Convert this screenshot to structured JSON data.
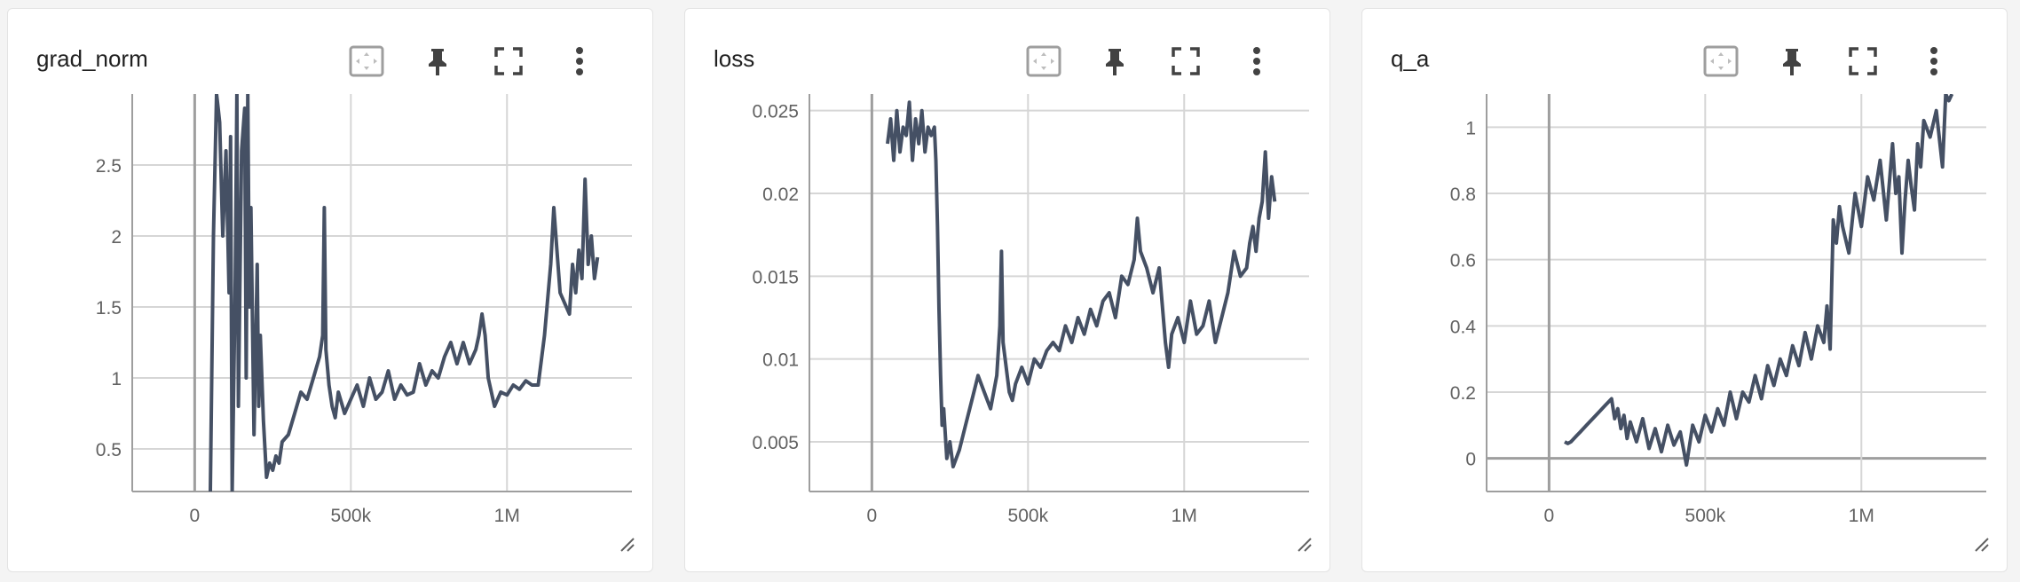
{
  "panels": [
    {
      "title": "grad_norm"
    },
    {
      "title": "loss"
    },
    {
      "title": "q_a"
    }
  ],
  "colors": {
    "series": "#455064",
    "grid": "#d6d6d6",
    "axis": "#9e9e9e",
    "text": "#616161"
  },
  "icons": [
    "fit-domain-icon",
    "pin-icon",
    "fullscreen-icon",
    "more-vert-icon",
    "resize-handle-icon"
  ],
  "chart_data": [
    {
      "type": "line",
      "title": "grad_norm",
      "xlim": [
        -200000,
        1400000
      ],
      "ylim": [
        0.2,
        3.0
      ],
      "xticks": [
        0,
        500000,
        1000000
      ],
      "xtick_labels": [
        "0",
        "500k",
        "1M"
      ],
      "yticks": [
        0.5,
        1,
        1.5,
        2,
        2.5
      ],
      "ytick_labels": [
        "0.5",
        "1",
        "1.5",
        "2",
        "2.5"
      ],
      "grid": true,
      "series": [
        {
          "x": [
            50000,
            60000,
            70000,
            75000,
            80000,
            90000,
            100000,
            110000,
            115000,
            120000,
            130000,
            135000,
            140000,
            150000,
            160000,
            165000,
            170000,
            175000,
            180000,
            190000,
            200000,
            205000,
            210000,
            220000,
            230000,
            240000,
            250000,
            260000,
            270000,
            280000,
            300000,
            320000,
            340000,
            360000,
            380000,
            400000,
            410000,
            415000,
            420000,
            430000,
            440000,
            450000,
            460000,
            480000,
            500000,
            520000,
            540000,
            560000,
            580000,
            600000,
            620000,
            640000,
            660000,
            680000,
            700000,
            720000,
            740000,
            760000,
            780000,
            800000,
            820000,
            840000,
            860000,
            880000,
            900000,
            910000,
            920000,
            930000,
            940000,
            960000,
            980000,
            1000000,
            1020000,
            1040000,
            1060000,
            1080000,
            1100000,
            1120000,
            1140000,
            1150000,
            1160000,
            1170000,
            1180000,
            1190000,
            1200000,
            1210000,
            1220000,
            1230000,
            1240000,
            1250000,
            1260000,
            1270000,
            1280000,
            1290000
          ],
          "y": [
            0.2,
            2.0,
            3.0,
            2.9,
            2.8,
            2.0,
            2.6,
            1.6,
            2.7,
            0.2,
            1.7,
            3.0,
            0.8,
            2.6,
            2.9,
            1.0,
            3.0,
            1.5,
            2.2,
            0.6,
            1.8,
            0.8,
            1.3,
            0.7,
            0.3,
            0.4,
            0.35,
            0.45,
            0.4,
            0.55,
            0.6,
            0.75,
            0.9,
            0.85,
            1.0,
            1.15,
            1.3,
            2.2,
            1.2,
            0.95,
            0.8,
            0.72,
            0.9,
            0.75,
            0.85,
            0.95,
            0.8,
            1.0,
            0.85,
            0.9,
            1.05,
            0.85,
            0.95,
            0.88,
            0.9,
            1.1,
            0.95,
            1.05,
            1.0,
            1.15,
            1.25,
            1.1,
            1.25,
            1.1,
            1.2,
            1.3,
            1.45,
            1.3,
            1.0,
            0.8,
            0.9,
            0.88,
            0.95,
            0.92,
            0.98,
            0.95,
            0.95,
            1.3,
            1.8,
            2.2,
            1.9,
            1.6,
            1.55,
            1.5,
            1.45,
            1.8,
            1.6,
            1.9,
            1.7,
            2.4,
            1.8,
            2.0,
            1.7,
            1.85
          ]
        }
      ]
    },
    {
      "type": "line",
      "title": "loss",
      "xlim": [
        -200000,
        1400000
      ],
      "ylim": [
        0.002,
        0.026
      ],
      "xticks": [
        0,
        500000,
        1000000
      ],
      "xtick_labels": [
        "0",
        "500k",
        "1M"
      ],
      "yticks": [
        0.005,
        0.01,
        0.015,
        0.02,
        0.025
      ],
      "ytick_labels": [
        "0.005",
        "0.01",
        "0.015",
        "0.02",
        "0.025"
      ],
      "grid": true,
      "series": [
        {
          "x": [
            50000,
            60000,
            70000,
            80000,
            90000,
            100000,
            110000,
            120000,
            130000,
            140000,
            150000,
            160000,
            170000,
            180000,
            190000,
            200000,
            205000,
            210000,
            215000,
            220000,
            225000,
            230000,
            240000,
            250000,
            260000,
            270000,
            280000,
            300000,
            320000,
            340000,
            360000,
            380000,
            400000,
            410000,
            415000,
            420000,
            430000,
            440000,
            450000,
            460000,
            480000,
            500000,
            520000,
            540000,
            560000,
            580000,
            600000,
            620000,
            640000,
            660000,
            680000,
            700000,
            720000,
            740000,
            760000,
            780000,
            800000,
            820000,
            840000,
            850000,
            860000,
            880000,
            900000,
            920000,
            940000,
            950000,
            960000,
            980000,
            1000000,
            1020000,
            1040000,
            1060000,
            1080000,
            1100000,
            1120000,
            1140000,
            1160000,
            1180000,
            1200000,
            1210000,
            1220000,
            1230000,
            1240000,
            1250000,
            1260000,
            1270000,
            1280000,
            1290000
          ],
          "y": [
            0.023,
            0.0245,
            0.022,
            0.025,
            0.0225,
            0.024,
            0.0235,
            0.0255,
            0.022,
            0.0245,
            0.023,
            0.025,
            0.0225,
            0.024,
            0.0235,
            0.024,
            0.022,
            0.018,
            0.013,
            0.009,
            0.006,
            0.007,
            0.004,
            0.005,
            0.0035,
            0.004,
            0.0045,
            0.006,
            0.0075,
            0.009,
            0.008,
            0.007,
            0.009,
            0.012,
            0.0165,
            0.011,
            0.0095,
            0.008,
            0.0075,
            0.0085,
            0.0095,
            0.0085,
            0.01,
            0.0095,
            0.0105,
            0.011,
            0.0105,
            0.012,
            0.011,
            0.0125,
            0.0115,
            0.013,
            0.012,
            0.0135,
            0.014,
            0.0125,
            0.015,
            0.0145,
            0.016,
            0.0185,
            0.0165,
            0.0155,
            0.014,
            0.0155,
            0.011,
            0.0095,
            0.0115,
            0.0125,
            0.011,
            0.0135,
            0.0115,
            0.012,
            0.0135,
            0.011,
            0.0125,
            0.014,
            0.0165,
            0.015,
            0.0155,
            0.017,
            0.018,
            0.0165,
            0.0185,
            0.0195,
            0.0225,
            0.0185,
            0.021,
            0.0195
          ]
        }
      ]
    },
    {
      "type": "line",
      "title": "q_a",
      "xlim": [
        -200000,
        1400000
      ],
      "ylim": [
        -0.1,
        1.1
      ],
      "xticks": [
        0,
        500000,
        1000000
      ],
      "xtick_labels": [
        "0",
        "500k",
        "1M"
      ],
      "yticks": [
        0,
        0.2,
        0.4,
        0.6,
        0.8,
        1
      ],
      "ytick_labels": [
        "0",
        "0.2",
        "0.4",
        "0.6",
        "0.8",
        "1"
      ],
      "grid": true,
      "series": [
        {
          "x": [
            50000,
            60000,
            70000,
            80000,
            90000,
            100000,
            120000,
            140000,
            160000,
            180000,
            200000,
            210000,
            220000,
            230000,
            240000,
            250000,
            260000,
            280000,
            300000,
            320000,
            340000,
            360000,
            380000,
            400000,
            420000,
            440000,
            460000,
            480000,
            500000,
            520000,
            540000,
            560000,
            580000,
            600000,
            620000,
            640000,
            660000,
            680000,
            700000,
            720000,
            740000,
            760000,
            780000,
            800000,
            820000,
            840000,
            860000,
            880000,
            890000,
            900000,
            910000,
            920000,
            930000,
            940000,
            960000,
            980000,
            1000000,
            1020000,
            1040000,
            1060000,
            1080000,
            1100000,
            1110000,
            1120000,
            1130000,
            1140000,
            1150000,
            1160000,
            1170000,
            1180000,
            1190000,
            1200000,
            1220000,
            1240000,
            1260000,
            1270000,
            1280000,
            1290000
          ],
          "y": [
            0.05,
            0.045,
            0.05,
            0.06,
            0.07,
            0.08,
            0.1,
            0.12,
            0.14,
            0.16,
            0.18,
            0.12,
            0.15,
            0.09,
            0.13,
            0.06,
            0.11,
            0.05,
            0.12,
            0.03,
            0.09,
            0.02,
            0.1,
            0.04,
            0.08,
            -0.02,
            0.1,
            0.05,
            0.13,
            0.08,
            0.15,
            0.1,
            0.2,
            0.12,
            0.2,
            0.17,
            0.25,
            0.18,
            0.28,
            0.22,
            0.3,
            0.25,
            0.34,
            0.28,
            0.38,
            0.3,
            0.4,
            0.35,
            0.46,
            0.33,
            0.72,
            0.65,
            0.76,
            0.7,
            0.62,
            0.8,
            0.7,
            0.85,
            0.78,
            0.9,
            0.72,
            0.95,
            0.8,
            0.85,
            0.62,
            0.78,
            0.9,
            0.82,
            0.75,
            0.95,
            0.88,
            1.02,
            0.97,
            1.05,
            0.88,
            1.1,
            1.08,
            1.1
          ]
        }
      ]
    }
  ]
}
